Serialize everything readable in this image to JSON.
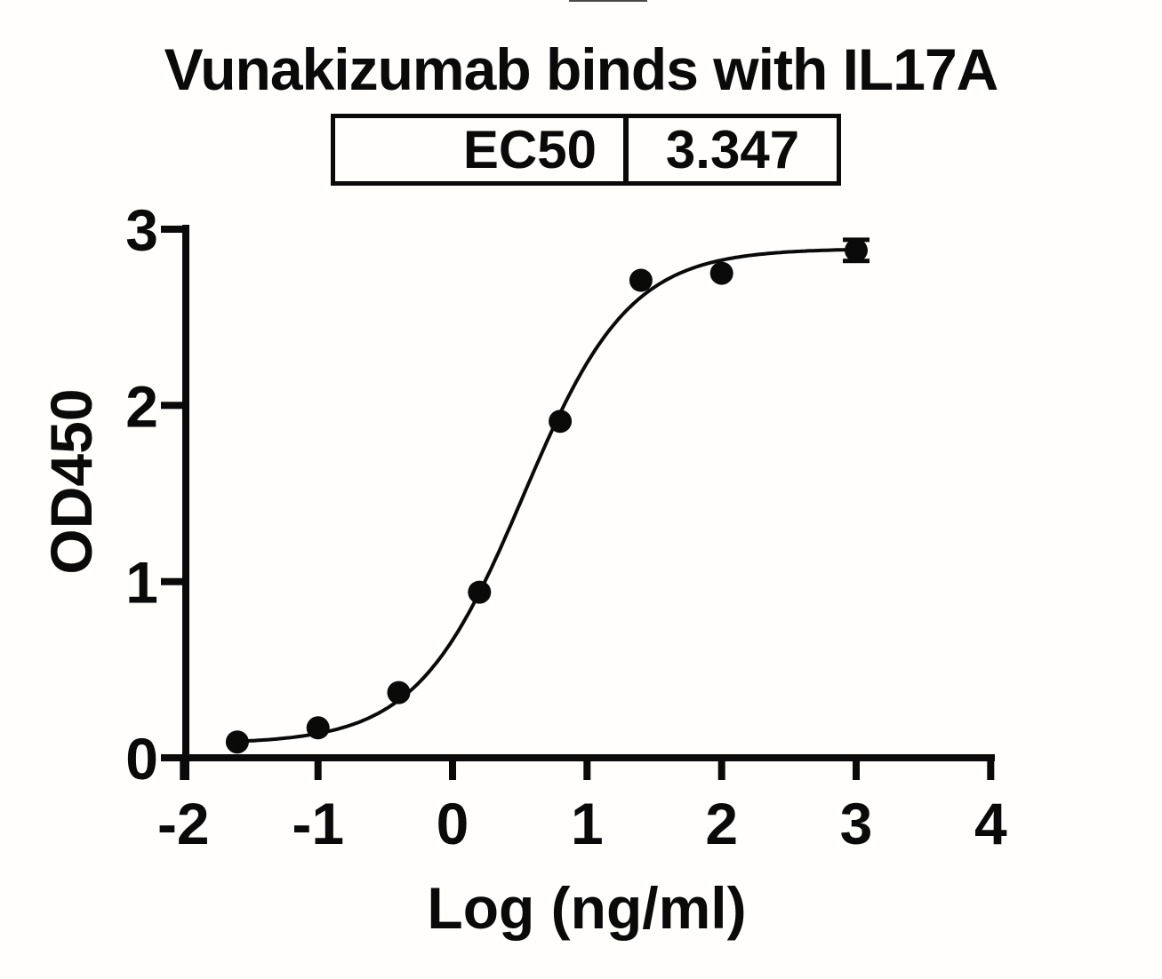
{
  "header": {
    "title": "Vunakizumab binds with IL17A"
  },
  "ec50_table": {
    "label": "EC50",
    "value": "3.347"
  },
  "chart_data": {
    "type": "scatter",
    "title": "Vunakizumab binds with IL17A",
    "xlabel": "Log (ng/ml)",
    "ylabel": "OD450",
    "xlim": [
      -2,
      4
    ],
    "ylim": [
      0,
      3
    ],
    "x_ticks": [
      -2,
      -1,
      0,
      1,
      2,
      3,
      4
    ],
    "y_ticks": [
      0,
      1,
      2,
      3
    ],
    "grid": false,
    "legend": "none",
    "marker_color": "#0a0a0a",
    "line_color": "#0a0a0a",
    "points": [
      {
        "x": -1.6,
        "y": 0.09
      },
      {
        "x": -1.0,
        "y": 0.17
      },
      {
        "x": -0.4,
        "y": 0.37
      },
      {
        "x": 0.2,
        "y": 0.94
      },
      {
        "x": 0.8,
        "y": 1.91
      },
      {
        "x": 1.4,
        "y": 2.71
      },
      {
        "x": 2.0,
        "y": 2.75
      },
      {
        "x": 3.0,
        "y": 2.88,
        "error": 0.06
      }
    ],
    "fit_curve": {
      "model": "4PL-sigmoid",
      "bottom": 0.08,
      "top": 2.89,
      "log_ec50": 0.5247,
      "hill_slope": 1.1,
      "x_range": [
        -1.6,
        3.0
      ]
    },
    "ec50": 3.347
  }
}
